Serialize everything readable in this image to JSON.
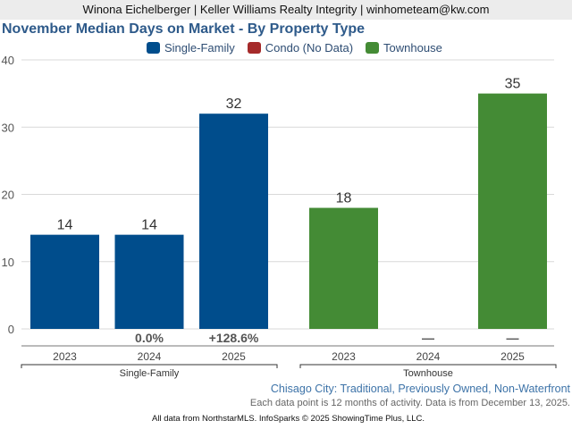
{
  "header": {
    "agent_line": "Winona Eichelberger | Keller Williams Realty Integrity | winhometeam@kw.com"
  },
  "chart_data": {
    "type": "bar",
    "title": "November Median Days on Market - By Property Type",
    "legend": [
      {
        "name": "Single-Family",
        "color": "#004d8c"
      },
      {
        "name": "Condo (No Data)",
        "color": "#a52a2a"
      },
      {
        "name": "Townhouse",
        "color": "#448b35"
      }
    ],
    "legend_position": "top-center",
    "ylim": [
      0,
      40
    ],
    "yticks": [
      0,
      10,
      20,
      30,
      40
    ],
    "grid": true,
    "groups": [
      {
        "name": "Single-Family",
        "color": "#004d8c",
        "categories": [
          "2023",
          "2024",
          "2025"
        ],
        "values": [
          14,
          14,
          32
        ],
        "value_labels": [
          "14",
          "14",
          "32"
        ],
        "change_labels": [
          "",
          "0.0%",
          "+128.6%"
        ]
      },
      {
        "name": "Townhouse",
        "color": "#448b35",
        "categories": [
          "2023",
          "2024",
          "2025"
        ],
        "values": [
          18,
          null,
          35
        ],
        "value_labels": [
          "18",
          "",
          "35"
        ],
        "change_labels": [
          "",
          "—",
          "—"
        ]
      }
    ]
  },
  "subtitle": "Chisago City: Traditional, Previously Owned, Non-Waterfront",
  "note": "Each data point is 12 months of activity. Data is from December 13, 2025.",
  "footer": "All data from NorthstarMLS. InfoSparks © 2025 ShowingTime Plus, LLC."
}
